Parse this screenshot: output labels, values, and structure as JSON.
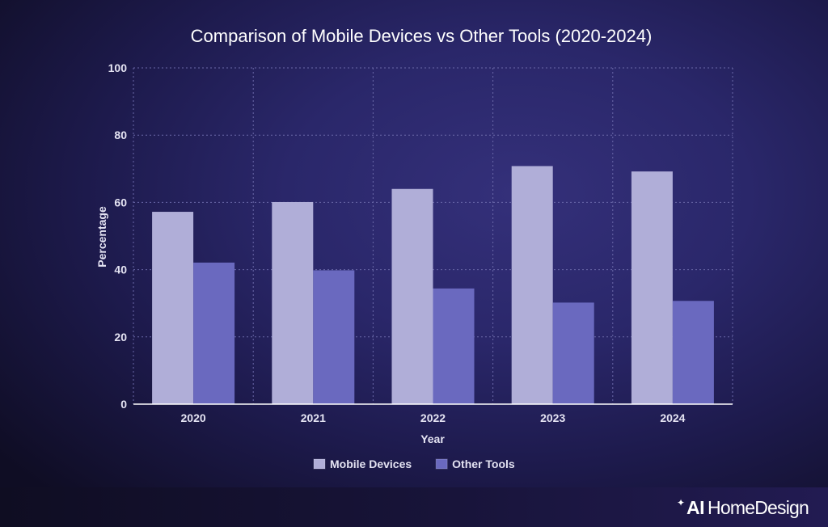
{
  "chart_data": {
    "type": "bar",
    "title": "Comparison of Mobile Devices vs Other Tools (2020-2024)",
    "xlabel": "Year",
    "ylabel": "Percentage",
    "categories": [
      "2020",
      "2021",
      "2022",
      "2023",
      "2024"
    ],
    "series": [
      {
        "name": "Mobile Devices",
        "values": [
          57.2,
          60.1,
          64.0,
          70.8,
          69.2
        ],
        "color": "#b0aed8"
      },
      {
        "name": "Other Tools",
        "values": [
          42.1,
          39.8,
          34.4,
          30.2,
          30.7
        ],
        "color": "#6a69bf"
      }
    ],
    "ylim": [
      0,
      100
    ],
    "yticks": [
      0,
      20,
      40,
      60,
      80,
      100
    ],
    "grid": true,
    "legend_position": "bottom-center"
  },
  "branding": {
    "logo_text": "AI HomeDesign",
    "logo_bold": "AI",
    "logo_regular": "HomeDesign",
    "sparkle_icon": "sparkle-icon"
  },
  "colors": {
    "text": "#ffffff",
    "tick_text": "#e4e3f2",
    "grid": "#6a68a8",
    "axis": "#ffffff"
  }
}
